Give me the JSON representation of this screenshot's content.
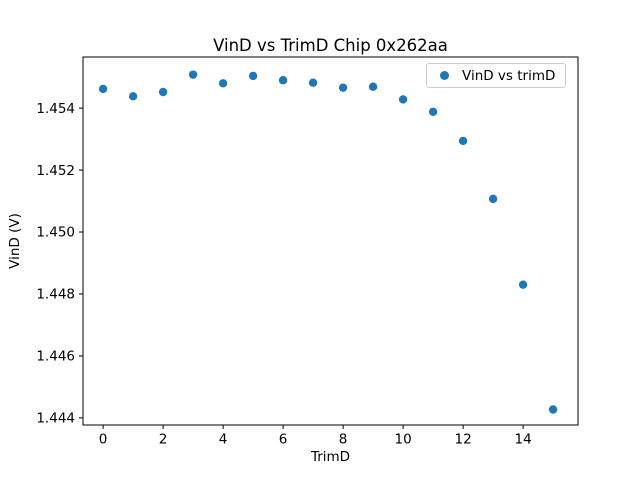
{
  "window": {
    "background": "#ffffff"
  },
  "chart_data": {
    "type": "scatter",
    "title": "VinD vs TrimD Chip 0x262aa",
    "xlabel": "TrimD",
    "ylabel": "VinD (V)",
    "legend": {
      "position": "upper-right",
      "label": "VinD vs trimD"
    },
    "series": [
      {
        "name": "VinD vs trimD",
        "marker": "circle",
        "color": "#1f77b4",
        "x": [
          0,
          1,
          2,
          3,
          4,
          5,
          6,
          7,
          8,
          9,
          10,
          11,
          12,
          13,
          14,
          15
        ],
        "y": [
          1.45462,
          1.45438,
          1.45452,
          1.45508,
          1.4548,
          1.45504,
          1.4549,
          1.45482,
          1.45466,
          1.45469,
          1.45428,
          1.45388,
          1.45294,
          1.45107,
          1.4483,
          1.44427
        ]
      }
    ],
    "xlim": [
      -0.67,
      15.83
    ],
    "ylim": [
      1.44377,
      1.45565
    ],
    "xticks": [
      0,
      2,
      4,
      6,
      8,
      10,
      12,
      14
    ],
    "xtick_labels": [
      "0",
      "2",
      "4",
      "6",
      "8",
      "10",
      "12",
      "14"
    ],
    "yticks": [
      1.444,
      1.446,
      1.448,
      1.45,
      1.452,
      1.454
    ],
    "ytick_labels": [
      "1.444",
      "1.446",
      "1.448",
      "1.450",
      "1.452",
      "1.454"
    ],
    "grid": false,
    "axis_color": "#000000",
    "text_color": "#000000",
    "legend_border_color": "#cccccc",
    "marker_radius_px": 4.2
  }
}
